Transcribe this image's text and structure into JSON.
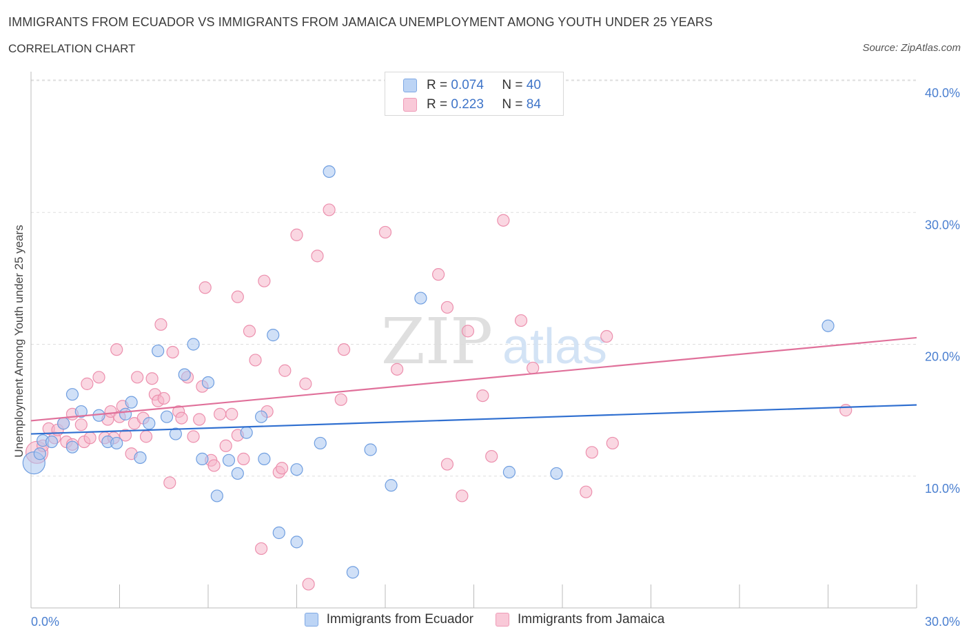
{
  "header": {
    "title": "IMMIGRANTS FROM ECUADOR VS IMMIGRANTS FROM JAMAICA UNEMPLOYMENT AMONG YOUTH UNDER 25 YEARS",
    "subtitle": "CORRELATION CHART",
    "source": "Source: ZipAtlas.com"
  },
  "watermark": {
    "zip": "ZIP",
    "atlas": "atlas"
  },
  "colors": {
    "ecuador_fill": "#a9c7f0",
    "ecuador_stroke": "#6f9ee0",
    "ecuador_line": "#2f6fd0",
    "jamaica_fill": "#f6b6cb",
    "jamaica_stroke": "#ec8fad",
    "jamaica_line": "#e0709a",
    "grid": "#dddddd",
    "tick_text": "#4a7fd0"
  },
  "legend": {
    "rows": [
      {
        "r_label": "R =",
        "r_value": "0.074",
        "n_label": "N =",
        "n_value": "40"
      },
      {
        "r_label": "R =",
        "r_value": "0.223",
        "n_label": "N =",
        "n_value": "84"
      }
    ],
    "bottom": [
      "Immigrants from Ecuador",
      "Immigrants from Jamaica"
    ]
  },
  "chart_data": {
    "type": "scatter",
    "title": "IMMIGRANTS FROM ECUADOR VS IMMIGRANTS FROM JAMAICA UNEMPLOYMENT AMONG YOUTH UNDER 25 YEARS",
    "xlabel": "",
    "ylabel": "Unemployment Among Youth under 25 years",
    "xlim": [
      0,
      30
    ],
    "ylim": [
      0,
      40
    ],
    "x_tick_labels": [
      "0.0%",
      "30.0%"
    ],
    "y_ticks": [
      10,
      20,
      30,
      40
    ],
    "y_tick_labels": [
      "10.0%",
      "20.0%",
      "30.0%",
      "40.0%"
    ],
    "grid": true,
    "series": [
      {
        "name": "Immigrants from Ecuador",
        "R": 0.074,
        "N": 40,
        "trend": {
          "x": [
            0,
            30
          ],
          "y": [
            13.2,
            15.4
          ]
        },
        "points": [
          {
            "x": 0.1,
            "y": 11.0,
            "s": "large"
          },
          {
            "x": 0.3,
            "y": 11.7
          },
          {
            "x": 0.4,
            "y": 12.7
          },
          {
            "x": 0.7,
            "y": 12.6
          },
          {
            "x": 1.1,
            "y": 14.0
          },
          {
            "x": 1.4,
            "y": 12.2
          },
          {
            "x": 1.4,
            "y": 16.2
          },
          {
            "x": 1.7,
            "y": 14.9
          },
          {
            "x": 2.3,
            "y": 14.6
          },
          {
            "x": 2.6,
            "y": 12.6
          },
          {
            "x": 2.9,
            "y": 12.5
          },
          {
            "x": 3.2,
            "y": 14.7
          },
          {
            "x": 3.4,
            "y": 15.6
          },
          {
            "x": 3.7,
            "y": 11.4
          },
          {
            "x": 4.0,
            "y": 14.0
          },
          {
            "x": 4.3,
            "y": 19.5
          },
          {
            "x": 4.6,
            "y": 14.5
          },
          {
            "x": 4.9,
            "y": 13.2
          },
          {
            "x": 5.2,
            "y": 17.7
          },
          {
            "x": 5.5,
            "y": 20.0
          },
          {
            "x": 5.8,
            "y": 11.3
          },
          {
            "x": 6.0,
            "y": 17.1
          },
          {
            "x": 6.3,
            "y": 8.5
          },
          {
            "x": 6.7,
            "y": 11.2
          },
          {
            "x": 7.0,
            "y": 10.2
          },
          {
            "x": 7.3,
            "y": 13.3
          },
          {
            "x": 7.8,
            "y": 14.5
          },
          {
            "x": 7.9,
            "y": 11.3
          },
          {
            "x": 8.2,
            "y": 20.7
          },
          {
            "x": 8.4,
            "y": 5.7
          },
          {
            "x": 9.0,
            "y": 10.5
          },
          {
            "x": 9.0,
            "y": 5.0
          },
          {
            "x": 9.8,
            "y": 12.5
          },
          {
            "x": 10.1,
            "y": 33.1
          },
          {
            "x": 10.9,
            "y": 2.7
          },
          {
            "x": 11.5,
            "y": 12.0
          },
          {
            "x": 12.2,
            "y": 9.3
          },
          {
            "x": 13.2,
            "y": 23.5
          },
          {
            "x": 16.2,
            "y": 10.3
          },
          {
            "x": 17.8,
            "y": 10.2
          },
          {
            "x": 27.0,
            "y": 21.4
          }
        ]
      },
      {
        "name": "Immigrants from Jamaica",
        "R": 0.223,
        "N": 84,
        "trend": {
          "x": [
            0,
            30
          ],
          "y": [
            14.2,
            20.5
          ]
        },
        "points": [
          {
            "x": 0.2,
            "y": 11.8,
            "s": "large"
          },
          {
            "x": 0.4,
            "y": 12.3
          },
          {
            "x": 0.6,
            "y": 13.6
          },
          {
            "x": 0.8,
            "y": 12.9
          },
          {
            "x": 0.9,
            "y": 13.5
          },
          {
            "x": 1.1,
            "y": 14.0
          },
          {
            "x": 1.2,
            "y": 12.6
          },
          {
            "x": 1.4,
            "y": 12.4
          },
          {
            "x": 1.4,
            "y": 14.7
          },
          {
            "x": 1.7,
            "y": 13.9
          },
          {
            "x": 1.8,
            "y": 12.6
          },
          {
            "x": 1.9,
            "y": 17.0
          },
          {
            "x": 2.0,
            "y": 12.9
          },
          {
            "x": 2.3,
            "y": 17.5
          },
          {
            "x": 2.5,
            "y": 12.9
          },
          {
            "x": 2.6,
            "y": 14.3
          },
          {
            "x": 2.7,
            "y": 14.9
          },
          {
            "x": 2.8,
            "y": 12.9
          },
          {
            "x": 2.9,
            "y": 19.6
          },
          {
            "x": 3.0,
            "y": 14.5
          },
          {
            "x": 3.1,
            "y": 15.3
          },
          {
            "x": 3.2,
            "y": 13.1
          },
          {
            "x": 3.4,
            "y": 11.7
          },
          {
            "x": 3.5,
            "y": 14.0
          },
          {
            "x": 3.6,
            "y": 17.5
          },
          {
            "x": 3.8,
            "y": 14.4
          },
          {
            "x": 3.9,
            "y": 13.0
          },
          {
            "x": 4.1,
            "y": 17.4
          },
          {
            "x": 4.2,
            "y": 16.2
          },
          {
            "x": 4.3,
            "y": 15.7
          },
          {
            "x": 4.4,
            "y": 21.5
          },
          {
            "x": 4.5,
            "y": 15.9
          },
          {
            "x": 4.7,
            "y": 9.5
          },
          {
            "x": 4.8,
            "y": 19.4
          },
          {
            "x": 5.0,
            "y": 14.9
          },
          {
            "x": 5.1,
            "y": 14.4
          },
          {
            "x": 5.3,
            "y": 17.5
          },
          {
            "x": 5.5,
            "y": 13.0
          },
          {
            "x": 5.7,
            "y": 14.3
          },
          {
            "x": 5.8,
            "y": 16.8
          },
          {
            "x": 5.9,
            "y": 24.3
          },
          {
            "x": 6.1,
            "y": 11.2
          },
          {
            "x": 6.2,
            "y": 10.8
          },
          {
            "x": 6.4,
            "y": 14.7
          },
          {
            "x": 6.6,
            "y": 12.3
          },
          {
            "x": 6.8,
            "y": 14.7
          },
          {
            "x": 7.0,
            "y": 23.6
          },
          {
            "x": 7.0,
            "y": 13.1
          },
          {
            "x": 7.2,
            "y": 11.3
          },
          {
            "x": 7.4,
            "y": 21.0
          },
          {
            "x": 7.6,
            "y": 18.8
          },
          {
            "x": 7.8,
            "y": 4.5
          },
          {
            "x": 7.9,
            "y": 24.8
          },
          {
            "x": 8.0,
            "y": 14.9
          },
          {
            "x": 8.4,
            "y": 10.3
          },
          {
            "x": 8.5,
            "y": 10.6
          },
          {
            "x": 8.6,
            "y": 18.0
          },
          {
            "x": 9.0,
            "y": 28.3
          },
          {
            "x": 9.3,
            "y": 17.0
          },
          {
            "x": 9.4,
            "y": 1.8
          },
          {
            "x": 9.7,
            "y": 26.7
          },
          {
            "x": 10.1,
            "y": 30.2
          },
          {
            "x": 10.5,
            "y": 15.8
          },
          {
            "x": 10.6,
            "y": 19.6
          },
          {
            "x": 12.0,
            "y": 28.5
          },
          {
            "x": 12.4,
            "y": 18.1
          },
          {
            "x": 13.8,
            "y": 25.3
          },
          {
            "x": 14.1,
            "y": 22.8
          },
          {
            "x": 14.1,
            "y": 10.9
          },
          {
            "x": 14.6,
            "y": 8.5
          },
          {
            "x": 15.3,
            "y": 16.1
          },
          {
            "x": 15.6,
            "y": 11.5
          },
          {
            "x": 16.0,
            "y": 29.4
          },
          {
            "x": 16.6,
            "y": 21.8
          },
          {
            "x": 17.0,
            "y": 18.2
          },
          {
            "x": 18.8,
            "y": 8.8
          },
          {
            "x": 19.0,
            "y": 11.8
          },
          {
            "x": 19.5,
            "y": 20.6
          },
          {
            "x": 19.7,
            "y": 12.5
          },
          {
            "x": 27.6,
            "y": 15.0
          },
          {
            "x": 14.8,
            "y": 21.0
          }
        ]
      }
    ]
  }
}
